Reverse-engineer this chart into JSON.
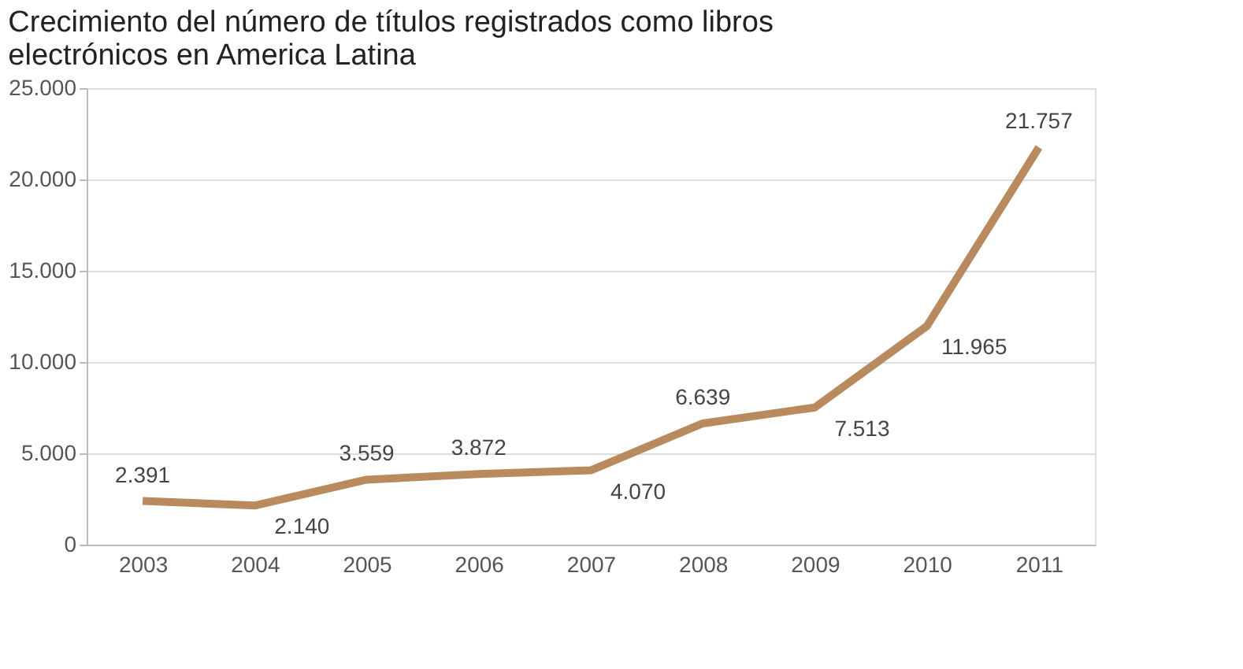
{
  "chart_data": {
    "type": "line",
    "title": "Crecimiento del número de títulos registrados como libros electrónicos en America Latina",
    "categories": [
      "2003",
      "2004",
      "2005",
      "2006",
      "2007",
      "2008",
      "2009",
      "2010",
      "2011"
    ],
    "series": [
      {
        "color": "#b88a5e",
        "values": [
          2391,
          2140,
          3559,
          3872,
          4070,
          6639,
          7513,
          11965,
          21757
        ],
        "value_labels": [
          "2.391",
          "2.140",
          "3.559",
          "3.872",
          "4.070",
          "6.639",
          "7.513",
          "11.965",
          "21.757"
        ]
      }
    ],
    "ylim": [
      0,
      25000
    ],
    "yticks": [
      {
        "value": 0,
        "label": "0"
      },
      {
        "value": 5000,
        "label": "5.000"
      },
      {
        "value": 10000,
        "label": "10.000"
      },
      {
        "value": 15000,
        "label": "15.000"
      },
      {
        "value": 20000,
        "label": "20.000"
      },
      {
        "value": 25000,
        "label": "25.000"
      }
    ],
    "grid": "y",
    "marker": "none",
    "line_style": "solid"
  }
}
